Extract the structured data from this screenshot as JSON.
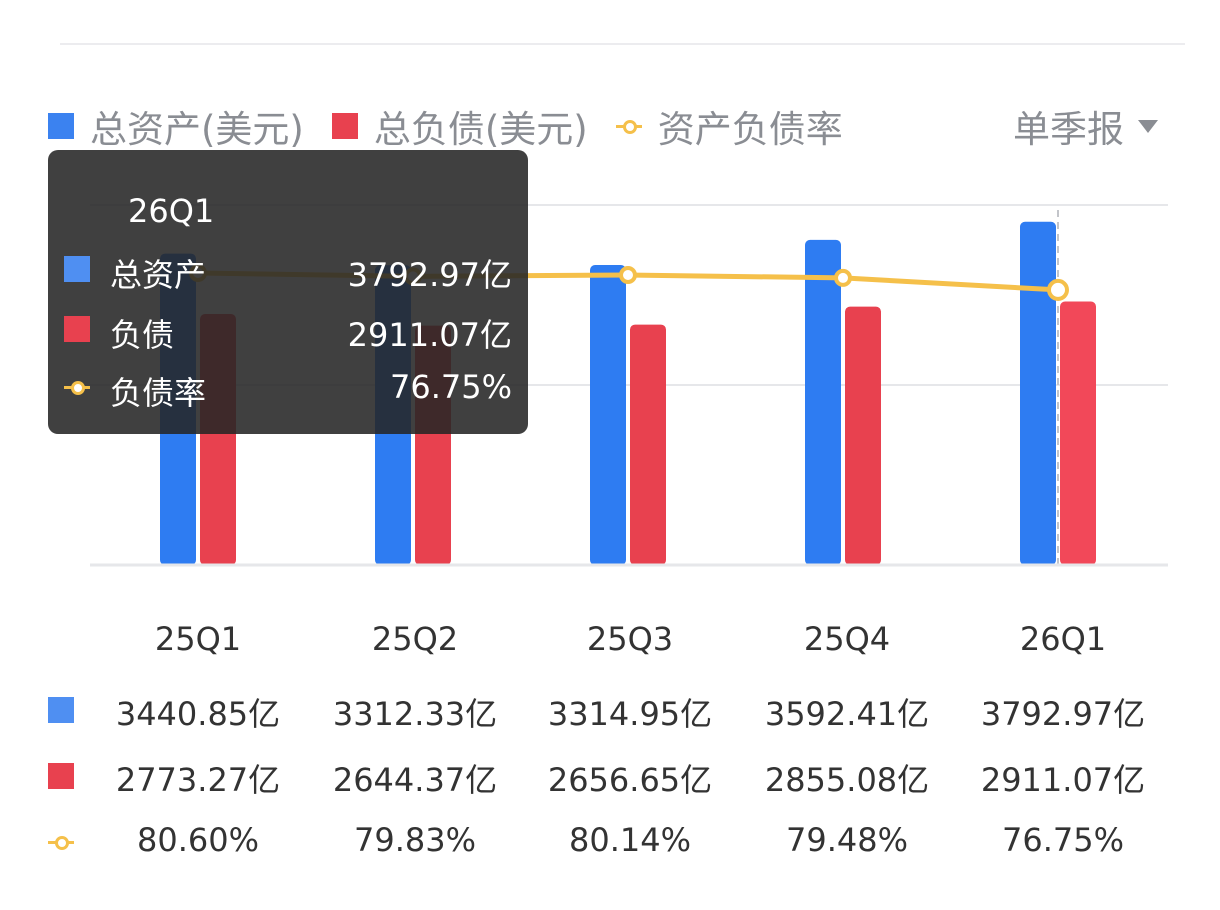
{
  "legend": {
    "assets_label": "总资产(美元)",
    "liabilities_label": "总负债(美元)",
    "ratio_label": "资产负债率"
  },
  "period_selector": {
    "label": "单季报"
  },
  "colors": {
    "assets": "#2e7cf2",
    "liabilities": "#e8414f",
    "ratio": "#f5c04a",
    "grid": "#e6e7ea"
  },
  "tooltip": {
    "title": "26Q1",
    "assets_name": "总资产",
    "assets_value": "3792.97亿",
    "liabilities_name": "负债",
    "liabilities_value": "2911.07亿",
    "ratio_name": "负债率",
    "ratio_value": "76.75%"
  },
  "chart_data": {
    "type": "bar",
    "categories": [
      "25Q1",
      "25Q2",
      "25Q3",
      "25Q4",
      "26Q1"
    ],
    "series": [
      {
        "name": "总资产(美元)",
        "type": "bar",
        "values": [
          3440.85,
          3312.33,
          3314.95,
          3592.41,
          3792.97
        ],
        "labels": [
          "3440.85亿",
          "3312.33亿",
          "3314.95亿",
          "3592.41亿",
          "3792.97亿"
        ]
      },
      {
        "name": "总负债(美元)",
        "type": "bar",
        "values": [
          2773.27,
          2644.37,
          2656.65,
          2855.08,
          2911.07
        ],
        "labels": [
          "2773.27亿",
          "2644.37亿",
          "2656.65亿",
          "2855.08亿",
          "2911.07亿"
        ]
      },
      {
        "name": "资产负债率",
        "type": "line",
        "values": [
          80.6,
          79.83,
          80.14,
          79.48,
          76.75
        ],
        "labels": [
          "80.60%",
          "79.83%",
          "80.14%",
          "79.48%",
          "76.75%"
        ]
      }
    ],
    "highlighted_category": "26Q1",
    "gridlines": 3,
    "grid": true,
    "legend": "top-left"
  }
}
